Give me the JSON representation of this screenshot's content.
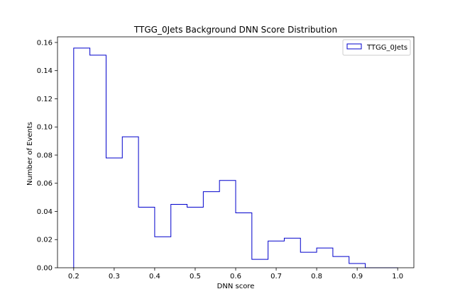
{
  "chart_data": {
    "type": "histogram",
    "title": "TTGG_0Jets Background DNN Score Distribution",
    "xlabel": "DNN score",
    "ylabel": "Number of Events",
    "xlim": [
      0.16,
      1.04
    ],
    "ylim": [
      0.0,
      0.164
    ],
    "xticks": [
      0.2,
      0.3,
      0.4,
      0.5,
      0.6,
      0.7,
      0.8,
      0.9,
      1.0
    ],
    "xtick_labels": [
      "0.2",
      "0.3",
      "0.4",
      "0.5",
      "0.6",
      "0.7",
      "0.8",
      "0.9",
      "1.0"
    ],
    "yticks": [
      0.0,
      0.02,
      0.04,
      0.06,
      0.08,
      0.1,
      0.12,
      0.14,
      0.16
    ],
    "ytick_labels": [
      "0.00",
      "0.02",
      "0.04",
      "0.06",
      "0.08",
      "0.10",
      "0.12",
      "0.14",
      "0.16"
    ],
    "grid": false,
    "legend_position": "top-right",
    "series": [
      {
        "name": "TTGG_0Jets",
        "color": "#0000cc",
        "histtype": "step",
        "bin_edges": [
          0.2,
          0.24,
          0.28,
          0.32,
          0.36,
          0.4,
          0.44,
          0.48,
          0.52,
          0.56,
          0.6,
          0.64,
          0.68,
          0.72,
          0.76,
          0.8,
          0.84,
          0.88,
          0.92,
          0.96,
          1.0
        ],
        "values": [
          0.156,
          0.151,
          0.078,
          0.093,
          0.043,
          0.022,
          0.045,
          0.043,
          0.054,
          0.062,
          0.039,
          0.006,
          0.019,
          0.021,
          0.011,
          0.014,
          0.008,
          0.003,
          0.0,
          0.0
        ]
      }
    ]
  }
}
